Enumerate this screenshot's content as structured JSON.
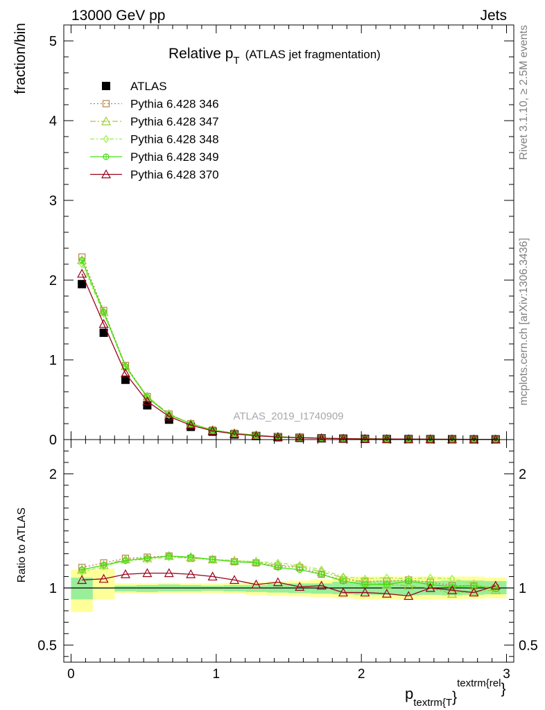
{
  "header": {
    "energy": "13000 GeV pp",
    "category": "Jets"
  },
  "side_texts": {
    "rivet": "Rivet 3.1.10, ≥ 2.5M events",
    "mcplots": "mcplots.cern.ch [arXiv:1306.3436]"
  },
  "chart_data": [
    {
      "type": "line",
      "title_main": "Relative p",
      "title_sub": "T",
      "title_rest": "(ATLAS jet fragmentation)",
      "watermark": "ATLAS_2019_I1740909",
      "ylabel": "fraction/bin",
      "xlim": [
        -0.05,
        3.05
      ],
      "ylim": [
        0,
        5.2
      ],
      "yticks": [
        0,
        1,
        2,
        3,
        4,
        5
      ],
      "yticklabels": [
        "0",
        "1",
        "2",
        "3",
        "4",
        "5"
      ],
      "x": [
        0.075,
        0.225,
        0.375,
        0.525,
        0.675,
        0.825,
        0.975,
        1.125,
        1.275,
        1.425,
        1.575,
        1.725,
        1.875,
        2.025,
        2.175,
        2.325,
        2.475,
        2.625,
        2.775,
        2.925
      ],
      "series": [
        {
          "name": "ATLAS",
          "color": "#000000",
          "marker": "square",
          "values": [
            1.95,
            1.34,
            0.75,
            0.43,
            0.25,
            0.16,
            0.1,
            0.065,
            0.045,
            0.03,
            0.022,
            0.016,
            0.012,
            0.009,
            0.007,
            0.006,
            0.005,
            0.004,
            0.003,
            0.003
          ]
        },
        {
          "name": "Pythia 6.428 346",
          "color": "#b5834a",
          "marker": "square-open",
          "dash": "2,3",
          "values": [
            2.29,
            1.62,
            0.93,
            0.54,
            0.32,
            0.2,
            0.12,
            0.08,
            0.055,
            0.036,
            0.026,
            0.018,
            0.013,
            0.01,
            0.008,
            0.006,
            0.005,
            0.004,
            0.003,
            0.003
          ]
        },
        {
          "name": "Pythia 6.428 347",
          "color": "#9acd32",
          "marker": "triangle-open",
          "dash": "8,3,2,3",
          "values": [
            2.25,
            1.6,
            0.92,
            0.54,
            0.32,
            0.2,
            0.12,
            0.08,
            0.055,
            0.036,
            0.026,
            0.018,
            0.013,
            0.01,
            0.008,
            0.006,
            0.005,
            0.004,
            0.003,
            0.003
          ]
        },
        {
          "name": "Pythia 6.428 348",
          "color": "#99ee44",
          "marker": "diamond-open",
          "dash": "6,3,2,3",
          "values": [
            2.2,
            1.58,
            0.91,
            0.53,
            0.31,
            0.2,
            0.12,
            0.08,
            0.055,
            0.036,
            0.026,
            0.018,
            0.013,
            0.01,
            0.008,
            0.006,
            0.005,
            0.004,
            0.003,
            0.003
          ]
        },
        {
          "name": "Pythia 6.428 349",
          "color": "#44dd11",
          "marker": "circle-plus",
          "dash": "",
          "values": [
            2.25,
            1.6,
            0.92,
            0.53,
            0.31,
            0.2,
            0.12,
            0.08,
            0.055,
            0.036,
            0.026,
            0.018,
            0.013,
            0.01,
            0.008,
            0.006,
            0.005,
            0.004,
            0.003,
            0.003
          ]
        },
        {
          "name": "Pythia 6.428 370",
          "color": "#99001a",
          "marker": "triangle-open",
          "dash": "",
          "values": [
            2.08,
            1.45,
            0.83,
            0.48,
            0.29,
            0.18,
            0.11,
            0.072,
            0.048,
            0.032,
            0.023,
            0.017,
            0.012,
            0.009,
            0.007,
            0.006,
            0.005,
            0.004,
            0.003,
            0.003
          ]
        }
      ]
    },
    {
      "type": "line",
      "ylabel": "Ratio to ATLAS",
      "xlabel_main": "p",
      "xlabel_sub": "textrm{T",
      "xlabel_close": "}",
      "xlabel_sup": "textrm{rel",
      "xlabel_sup_close": "}",
      "xlim": [
        -0.05,
        3.05
      ],
      "ylim": [
        0.35,
        2.3
      ],
      "yticks": [
        0.5,
        1,
        2
      ],
      "yticklabels": [
        "0.5",
        "1",
        "2"
      ],
      "xticks": [
        0,
        1,
        2,
        3
      ],
      "xticklabels": [
        "0",
        "1",
        "2",
        "3"
      ],
      "x": [
        0.075,
        0.225,
        0.375,
        0.525,
        0.675,
        0.825,
        0.975,
        1.125,
        1.275,
        1.425,
        1.575,
        1.725,
        1.875,
        2.025,
        2.175,
        2.325,
        2.475,
        2.625,
        2.775,
        2.925
      ],
      "bins": [
        0,
        0.15,
        0.3,
        0.45,
        0.6,
        0.75,
        0.9,
        1.05,
        1.2,
        1.35,
        1.5,
        1.65,
        1.8,
        1.95,
        2.1,
        2.25,
        2.4,
        2.55,
        2.7,
        2.85,
        3.0
      ],
      "band_inner": [
        [
          0.9,
          1.09
        ],
        [
          1.0,
          1.0
        ],
        [
          0.97,
          1.02
        ],
        [
          0.965,
          1.025
        ],
        [
          0.97,
          1.03
        ],
        [
          0.97,
          1.025
        ],
        [
          0.975,
          1.02
        ],
        [
          0.97,
          1.025
        ],
        [
          0.965,
          1.025
        ],
        [
          0.96,
          1.035
        ],
        [
          0.955,
          1.04
        ],
        [
          0.95,
          1.04
        ],
        [
          0.945,
          1.055
        ],
        [
          0.94,
          1.06
        ],
        [
          0.94,
          1.065
        ],
        [
          0.935,
          1.065
        ],
        [
          0.94,
          1.06
        ],
        [
          0.935,
          1.065
        ],
        [
          0.94,
          1.065
        ],
        [
          0.945,
          1.06
        ]
      ],
      "band_outer": [
        [
          0.79,
          1.16
        ],
        [
          0.9,
          1.17
        ],
        [
          0.955,
          1.04
        ],
        [
          0.95,
          1.04
        ],
        [
          0.955,
          1.045
        ],
        [
          0.955,
          1.04
        ],
        [
          0.955,
          1.04
        ],
        [
          0.95,
          1.045
        ],
        [
          0.94,
          1.05
        ],
        [
          0.93,
          1.06
        ],
        [
          0.925,
          1.065
        ],
        [
          0.92,
          1.075
        ],
        [
          0.91,
          1.09
        ],
        [
          0.9,
          1.1
        ],
        [
          0.9,
          1.1
        ],
        [
          0.9,
          1.1
        ],
        [
          0.9,
          1.1
        ],
        [
          0.9,
          1.1
        ],
        [
          0.905,
          1.1
        ],
        [
          0.91,
          1.09
        ]
      ],
      "series": [
        {
          "name": "Pythia 6.428 346",
          "color": "#b5834a",
          "marker": "square-open",
          "dash": "2,3",
          "values": [
            1.18,
            1.22,
            1.26,
            1.27,
            1.28,
            1.26,
            1.25,
            1.23,
            1.22,
            1.19,
            1.18,
            1.12,
            1.07,
            1.06,
            1.06,
            1.07,
            1.05,
            1.02,
            1.02,
            1.0
          ]
        },
        {
          "name": "Pythia 6.428 347",
          "color": "#9acd32",
          "marker": "triangle-open",
          "dash": "8,3,2,3",
          "values": [
            1.16,
            1.2,
            1.25,
            1.26,
            1.28,
            1.27,
            1.25,
            1.24,
            1.23,
            1.2,
            1.19,
            1.14,
            1.09,
            1.05,
            1.03,
            1.02,
            1.0,
            0.95,
            0.97,
            0.98
          ]
        },
        {
          "name": "Pythia 6.428 348",
          "color": "#99ee44",
          "marker": "diamond-open",
          "dash": "6,3,2,3",
          "values": [
            1.14,
            1.19,
            1.24,
            1.25,
            1.27,
            1.26,
            1.25,
            1.24,
            1.23,
            1.22,
            1.2,
            1.16,
            1.1,
            1.08,
            1.09,
            1.08,
            1.09,
            1.08,
            1.04,
            1.0
          ]
        },
        {
          "name": "Pythia 6.428 349",
          "color": "#44dd11",
          "marker": "circle-plus",
          "dash": "",
          "values": [
            1.16,
            1.2,
            1.24,
            1.26,
            1.28,
            1.27,
            1.25,
            1.23,
            1.22,
            1.18,
            1.16,
            1.12,
            1.06,
            1.03,
            1.03,
            1.06,
            1.03,
            1.01,
            1.02,
            0.99
          ]
        },
        {
          "name": "Pythia 6.428 370",
          "color": "#99001a",
          "marker": "triangle-open",
          "dash": "",
          "values": [
            1.07,
            1.08,
            1.12,
            1.13,
            1.13,
            1.12,
            1.1,
            1.07,
            1.03,
            1.05,
            1.01,
            1.02,
            0.96,
            0.96,
            0.95,
            0.93,
            1.0,
            0.98,
            0.96,
            1.02
          ]
        }
      ]
    }
  ]
}
